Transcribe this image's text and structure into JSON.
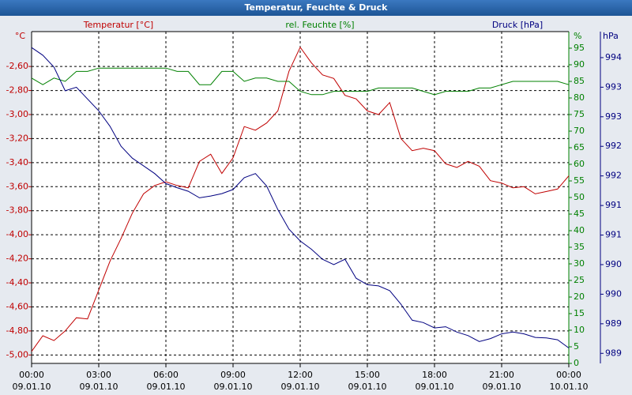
{
  "chart_data": {
    "type": "line",
    "title": "Temperatur, Feuchte & Druck",
    "x": [
      0,
      0.5,
      1,
      1.5,
      2,
      2.5,
      3,
      3.5,
      4,
      4.5,
      5,
      5.5,
      6,
      6.5,
      7,
      7.5,
      8,
      8.5,
      9,
      9.5,
      10,
      10.5,
      11,
      11.5,
      12,
      12.5,
      13,
      13.5,
      14,
      14.5,
      15,
      15.5,
      16,
      16.5,
      17,
      17.5,
      18,
      18.5,
      19,
      19.5,
      20,
      20.5,
      21,
      21.5,
      22,
      22.5,
      23,
      23.5,
      24
    ],
    "xlim": [
      0,
      24
    ],
    "xticks": [
      {
        "value": 0,
        "label": "00:00",
        "date": "09.01.10"
      },
      {
        "value": 3,
        "label": "03:00",
        "date": "09.01.10"
      },
      {
        "value": 6,
        "label": "06:00",
        "date": "09.01.10"
      },
      {
        "value": 9,
        "label": "09:00",
        "date": "09.01.10"
      },
      {
        "value": 12,
        "label": "12:00",
        "date": "09.01.10"
      },
      {
        "value": 15,
        "label": "15:00",
        "date": "09.01.10"
      },
      {
        "value": 18,
        "label": "18:00",
        "date": "09.01.10"
      },
      {
        "value": 21,
        "label": "21:00",
        "date": "09.01.10"
      },
      {
        "value": 24,
        "label": "00:00",
        "date": "10.01.10"
      }
    ],
    "y_unit": "°C",
    "y2_unit": "%",
    "y3_unit": "hPa",
    "ylim": [
      -5.07,
      -2.31
    ],
    "yticks": [
      {
        "value": -5.0,
        "label": "-5,00"
      },
      {
        "value": -4.8,
        "label": "-4,80"
      },
      {
        "value": -4.6,
        "label": "-4,60"
      },
      {
        "value": -4.4,
        "label": "-4,40"
      },
      {
        "value": -4.2,
        "label": "-4,20"
      },
      {
        "value": -4.0,
        "label": "-4,00"
      },
      {
        "value": -3.8,
        "label": "-3,80"
      },
      {
        "value": -3.6,
        "label": "-3,60"
      },
      {
        "value": -3.4,
        "label": "-3,40"
      },
      {
        "value": -3.2,
        "label": "-3,20"
      },
      {
        "value": -3.0,
        "label": "-3,00"
      },
      {
        "value": -2.8,
        "label": "-2,80"
      },
      {
        "value": -2.6,
        "label": "-2,60"
      }
    ],
    "y2lim": [
      0,
      100
    ],
    "y2ticks": [
      0,
      5,
      10,
      15,
      20,
      25,
      30,
      35,
      40,
      45,
      50,
      55,
      60,
      65,
      70,
      75,
      80,
      85,
      90,
      95
    ],
    "y3lim": [
      988.83,
      994.44
    ],
    "y3ticks": [
      {
        "value": 989.0,
        "label": "989"
      },
      {
        "value": 989.5,
        "label": "989"
      },
      {
        "value": 990.0,
        "label": "990"
      },
      {
        "value": 990.5,
        "label": "990"
      },
      {
        "value": 991.0,
        "label": "991"
      },
      {
        "value": 991.5,
        "label": "991"
      },
      {
        "value": 992.0,
        "label": "992"
      },
      {
        "value": 992.5,
        "label": "992"
      },
      {
        "value": 993.0,
        "label": "993"
      },
      {
        "value": 993.5,
        "label": "993"
      },
      {
        "value": 994.0,
        "label": "994"
      }
    ],
    "grid": true,
    "series": [
      {
        "name": "Temperatur [°C]",
        "color": "#c00000",
        "axis": "y",
        "values": [
          -4.97,
          -4.84,
          -4.88,
          -4.8,
          -4.69,
          -4.7,
          -4.46,
          -4.22,
          -4.03,
          -3.82,
          -3.66,
          -3.59,
          -3.56,
          -3.59,
          -3.61,
          -3.39,
          -3.33,
          -3.49,
          -3.36,
          -3.1,
          -3.13,
          -3.07,
          -2.97,
          -2.64,
          -2.44,
          -2.57,
          -2.67,
          -2.7,
          -2.84,
          -2.87,
          -2.97,
          -3.0,
          -2.9,
          -3.2,
          -3.3,
          -3.28,
          -3.3,
          -3.41,
          -3.44,
          -3.39,
          -3.43,
          -3.55,
          -3.57,
          -3.61,
          -3.6,
          -3.66,
          -3.64,
          -3.62,
          -3.51
        ]
      },
      {
        "name": "rel. Feuchte [%]",
        "color": "#008000",
        "axis": "y2",
        "values": [
          86,
          84,
          86,
          85,
          88,
          88,
          89,
          89,
          89,
          89,
          89,
          89,
          89,
          88,
          88,
          84,
          84,
          88,
          88,
          85,
          86,
          86,
          85,
          85,
          82,
          81,
          81,
          82,
          82,
          82,
          82,
          83,
          83,
          83,
          83,
          82,
          81,
          82,
          82,
          82,
          83,
          83,
          84,
          85,
          85,
          85,
          85,
          85,
          84
        ]
      },
      {
        "name": "Druck [hPa]",
        "color": "#000080",
        "axis": "y3",
        "values": [
          994.17,
          994.04,
          993.84,
          993.44,
          993.5,
          993.3,
          993.1,
          992.84,
          992.5,
          992.3,
          992.17,
          992.04,
          991.87,
          991.8,
          991.74,
          991.63,
          991.66,
          991.7,
          991.77,
          991.97,
          992.04,
          991.83,
          991.43,
          991.1,
          990.9,
          990.76,
          990.59,
          990.5,
          990.59,
          990.27,
          990.16,
          990.14,
          990.06,
          989.83,
          989.56,
          989.52,
          989.43,
          989.45,
          989.36,
          989.3,
          989.2,
          989.25,
          989.33,
          989.36,
          989.33,
          989.27,
          989.26,
          989.23,
          989.09
        ]
      }
    ]
  }
}
